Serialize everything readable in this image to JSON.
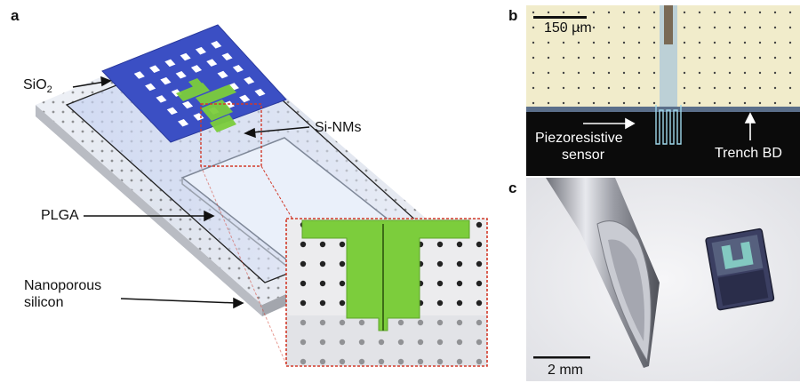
{
  "panels": {
    "a": {
      "label": "a",
      "annotations": {
        "sio2_main": "SiO",
        "sio2_sub": "2",
        "si_nms": "Si-NMs",
        "plga": "PLGA",
        "nanoporous_line1": "Nanoporous",
        "nanoporous_line2": "silicon"
      }
    },
    "b": {
      "label": "b",
      "scale_bar": "150 µm",
      "piezo_line1": "Piezoresistive",
      "piezo_line2": "sensor",
      "trench": "Trench BD"
    },
    "c": {
      "label": "c",
      "scale_bar": "2 mm"
    }
  },
  "colors": {
    "sio2_layer": "#3b4fc4",
    "si_nm_green": "#7ccd3c",
    "inset_border": "#d23a2a",
    "micrograph_bg": "#f1eccb",
    "micrograph_dark": "#0b0b0b"
  }
}
